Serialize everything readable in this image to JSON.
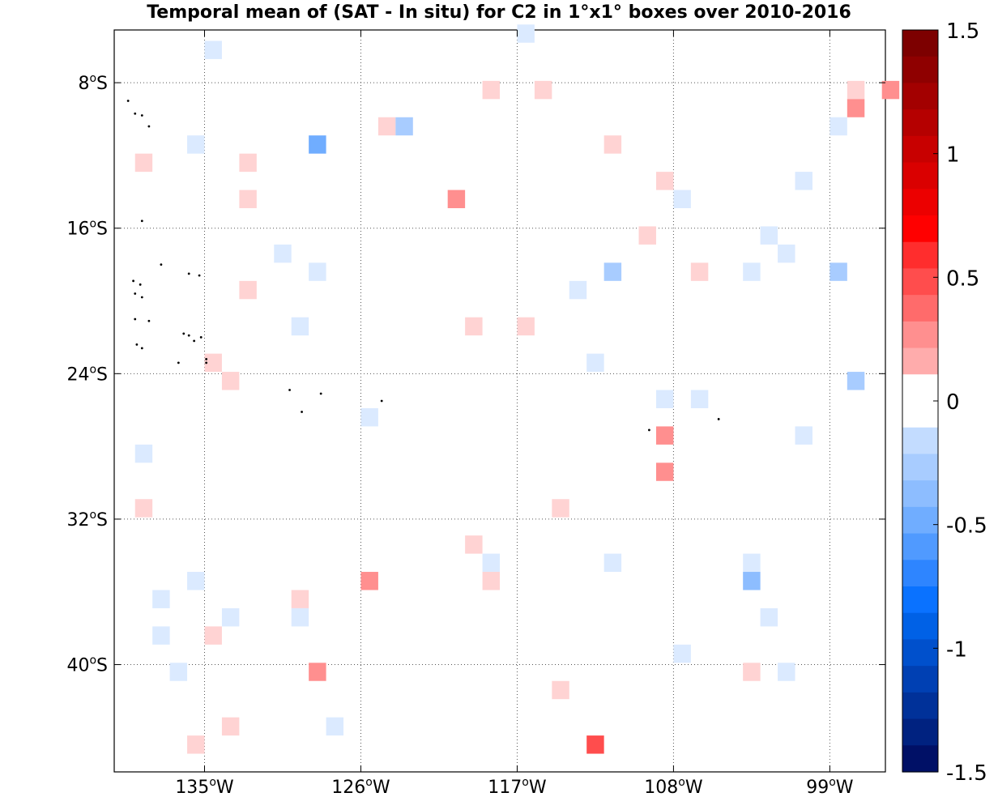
{
  "chart_data": {
    "type": "heatmap",
    "title": "Temporal mean of (SAT - In situ) for C2 in 1°x1° boxes over 2010-2016",
    "xlabel": "",
    "ylabel": "",
    "xlim": [
      -140.2,
      -95.8
    ],
    "ylim": [
      -45.9,
      -5.1
    ],
    "grid": true,
    "grid_style": "dotted",
    "x_ticks": [
      -135,
      -126,
      -117,
      -108,
      -99
    ],
    "x_tick_labels": [
      {
        "num": "135",
        "deg": "o",
        "hemi": "W"
      },
      {
        "num": "126",
        "deg": "o",
        "hemi": "W"
      },
      {
        "num": "117",
        "deg": "o",
        "hemi": "W"
      },
      {
        "num": "108",
        "deg": "o",
        "hemi": "W"
      },
      {
        "num": "99",
        "deg": "o",
        "hemi": "W"
      }
    ],
    "y_ticks": [
      -8,
      -16,
      -24,
      -32,
      -40
    ],
    "y_tick_labels": [
      {
        "num": "8",
        "deg": "o",
        "hemi": "S"
      },
      {
        "num": "16",
        "deg": "o",
        "hemi": "S"
      },
      {
        "num": "24",
        "deg": "o",
        "hemi": "S"
      },
      {
        "num": "32",
        "deg": "o",
        "hemi": "S"
      },
      {
        "num": "40",
        "deg": "o",
        "hemi": "S"
      }
    ],
    "box_size_deg": 1,
    "boxes": [
      {
        "lon": -134.5,
        "lat": -6.2,
        "value": -0.1
      },
      {
        "lon": -116.5,
        "lat": -5.3,
        "value": -0.1
      },
      {
        "lon": -118.5,
        "lat": -8.4,
        "value": 0.1
      },
      {
        "lon": -115.5,
        "lat": -8.4,
        "value": 0.1
      },
      {
        "lon": -97.5,
        "lat": -8.4,
        "value": 0.1
      },
      {
        "lon": -95.5,
        "lat": -8.4,
        "value": 0.3
      },
      {
        "lon": -97.5,
        "lat": -9.4,
        "value": 0.3
      },
      {
        "lon": -98.5,
        "lat": -10.4,
        "value": -0.1
      },
      {
        "lon": -124.5,
        "lat": -10.4,
        "value": 0.1
      },
      {
        "lon": -123.5,
        "lat": -10.4,
        "value": -0.25
      },
      {
        "lon": -135.5,
        "lat": -11.4,
        "value": -0.1
      },
      {
        "lon": -128.5,
        "lat": -11.4,
        "value": -0.5
      },
      {
        "lon": -111.5,
        "lat": -11.4,
        "value": 0.1
      },
      {
        "lon": -138.5,
        "lat": -12.4,
        "value": 0.1
      },
      {
        "lon": -132.5,
        "lat": -12.4,
        "value": 0.1
      },
      {
        "lon": -100.5,
        "lat": -13.4,
        "value": -0.1
      },
      {
        "lon": -108.5,
        "lat": -13.4,
        "value": 0.1
      },
      {
        "lon": -107.5,
        "lat": -14.4,
        "value": -0.1
      },
      {
        "lon": -132.5,
        "lat": -14.4,
        "value": 0.1
      },
      {
        "lon": -120.5,
        "lat": -14.4,
        "value": 0.3
      },
      {
        "lon": -109.5,
        "lat": -16.4,
        "value": 0.1
      },
      {
        "lon": -102.5,
        "lat": -16.4,
        "value": -0.1
      },
      {
        "lon": -130.5,
        "lat": -17.4,
        "value": -0.1
      },
      {
        "lon": -101.5,
        "lat": -17.4,
        "value": -0.1
      },
      {
        "lon": -128.5,
        "lat": -18.4,
        "value": -0.1
      },
      {
        "lon": -111.5,
        "lat": -18.4,
        "value": -0.3
      },
      {
        "lon": -106.5,
        "lat": -18.4,
        "value": 0.1
      },
      {
        "lon": -103.5,
        "lat": -18.4,
        "value": -0.1
      },
      {
        "lon": -98.5,
        "lat": -18.4,
        "value": -0.3
      },
      {
        "lon": -132.5,
        "lat": -19.4,
        "value": 0.1
      },
      {
        "lon": -113.5,
        "lat": -19.4,
        "value": -0.1
      },
      {
        "lon": -129.5,
        "lat": -21.4,
        "value": -0.1
      },
      {
        "lon": -119.5,
        "lat": -21.4,
        "value": 0.1
      },
      {
        "lon": -116.5,
        "lat": -21.4,
        "value": 0.1
      },
      {
        "lon": -134.5,
        "lat": -23.4,
        "value": 0.1
      },
      {
        "lon": -112.5,
        "lat": -23.4,
        "value": -0.1
      },
      {
        "lon": -133.5,
        "lat": -24.4,
        "value": 0.1
      },
      {
        "lon": -97.5,
        "lat": -24.4,
        "value": -0.3
      },
      {
        "lon": -108.5,
        "lat": -25.4,
        "value": -0.1
      },
      {
        "lon": -106.5,
        "lat": -25.4,
        "value": -0.1
      },
      {
        "lon": -125.5,
        "lat": -26.4,
        "value": -0.1
      },
      {
        "lon": -108.5,
        "lat": -27.4,
        "value": 0.3
      },
      {
        "lon": -100.5,
        "lat": -27.4,
        "value": -0.1
      },
      {
        "lon": -138.5,
        "lat": -28.4,
        "value": -0.1
      },
      {
        "lon": -108.5,
        "lat": -29.4,
        "value": 0.3
      },
      {
        "lon": -138.5,
        "lat": -31.4,
        "value": 0.1
      },
      {
        "lon": -114.5,
        "lat": -31.4,
        "value": 0.1
      },
      {
        "lon": -119.5,
        "lat": -33.4,
        "value": 0.1
      },
      {
        "lon": -118.5,
        "lat": -34.4,
        "value": -0.1
      },
      {
        "lon": -111.5,
        "lat": -34.4,
        "value": -0.1
      },
      {
        "lon": -103.5,
        "lat": -34.4,
        "value": -0.1
      },
      {
        "lon": -135.5,
        "lat": -35.4,
        "value": -0.1
      },
      {
        "lon": -125.5,
        "lat": -35.4,
        "value": 0.3
      },
      {
        "lon": -118.5,
        "lat": -35.4,
        "value": 0.1
      },
      {
        "lon": -103.5,
        "lat": -35.4,
        "value": -0.4
      },
      {
        "lon": -137.5,
        "lat": -36.4,
        "value": -0.1
      },
      {
        "lon": -129.5,
        "lat": -36.4,
        "value": 0.1
      },
      {
        "lon": -133.5,
        "lat": -37.4,
        "value": -0.1
      },
      {
        "lon": -129.5,
        "lat": -37.4,
        "value": -0.1
      },
      {
        "lon": -102.5,
        "lat": -37.4,
        "value": -0.1
      },
      {
        "lon": -137.5,
        "lat": -38.4,
        "value": -0.1
      },
      {
        "lon": -134.5,
        "lat": -38.4,
        "value": 0.1
      },
      {
        "lon": -107.5,
        "lat": -39.4,
        "value": -0.1
      },
      {
        "lon": -136.5,
        "lat": -40.4,
        "value": -0.1
      },
      {
        "lon": -128.5,
        "lat": -40.4,
        "value": 0.3
      },
      {
        "lon": -103.5,
        "lat": -40.4,
        "value": 0.1
      },
      {
        "lon": -101.5,
        "lat": -40.4,
        "value": -0.1
      },
      {
        "lon": -114.5,
        "lat": -41.4,
        "value": 0.1
      },
      {
        "lon": -133.5,
        "lat": -43.4,
        "value": 0.1
      },
      {
        "lon": -127.5,
        "lat": -43.4,
        "value": -0.1
      },
      {
        "lon": -135.5,
        "lat": -44.4,
        "value": 0.1
      },
      {
        "lon": -112.5,
        "lat": -44.4,
        "value": 0.45
      }
    ],
    "land_points": [
      [
        -139.4,
        -9.0
      ],
      [
        -139.0,
        -9.7
      ],
      [
        -138.6,
        -9.8
      ],
      [
        -138.2,
        -10.4
      ],
      [
        -138.6,
        -15.6
      ],
      [
        -137.5,
        -18.0
      ],
      [
        -135.9,
        -18.5
      ],
      [
        -135.3,
        -18.6
      ],
      [
        -139.1,
        -18.9
      ],
      [
        -138.7,
        -19.1
      ],
      [
        -139.0,
        -19.6
      ],
      [
        -138.6,
        -19.8
      ],
      [
        -139.0,
        -21.0
      ],
      [
        -138.2,
        -21.1
      ],
      [
        -136.2,
        -21.8
      ],
      [
        -135.9,
        -21.9
      ],
      [
        -135.2,
        -22.0
      ],
      [
        -135.6,
        -22.2
      ],
      [
        -138.9,
        -22.4
      ],
      [
        -138.6,
        -22.6
      ],
      [
        -136.5,
        -23.4
      ],
      [
        -134.9,
        -23.2
      ],
      [
        -134.9,
        -23.4
      ],
      [
        -130.1,
        -24.9
      ],
      [
        -128.3,
        -25.1
      ],
      [
        -124.8,
        -25.5
      ],
      [
        -129.4,
        -26.1
      ],
      [
        -109.4,
        -27.1
      ],
      [
        -105.4,
        -26.5
      ]
    ]
  },
  "colorbar": {
    "vmin": -1.5,
    "vmax": 1.5,
    "levels": 28,
    "tick_values": [
      1.5,
      1,
      0.5,
      0,
      -0.5,
      -1,
      -1.5
    ],
    "tick_labels": [
      "1.5",
      "1",
      "0.5",
      "0",
      "-0.5",
      "-1",
      "-1.5"
    ],
    "colors": [
      "#7d0000",
      "#8f0000",
      "#a30000",
      "#b50000",
      "#c80000",
      "#da0000",
      "#ec0000",
      "#ff0000",
      "#ff2d2d",
      "#ff4d4d",
      "#ff6b6b",
      "#ff8f8f",
      "#ffacac",
      "#ffd3d3",
      "#dbeaff",
      "#c3dcff",
      "#a8ccff",
      "#8dbdff",
      "#70adff",
      "#509aff",
      "#2e85ff",
      "#0a72ff",
      "#0061e6",
      "#0050cc",
      "#0040b3",
      "#003199",
      "#002280",
      "#001066"
    ]
  }
}
